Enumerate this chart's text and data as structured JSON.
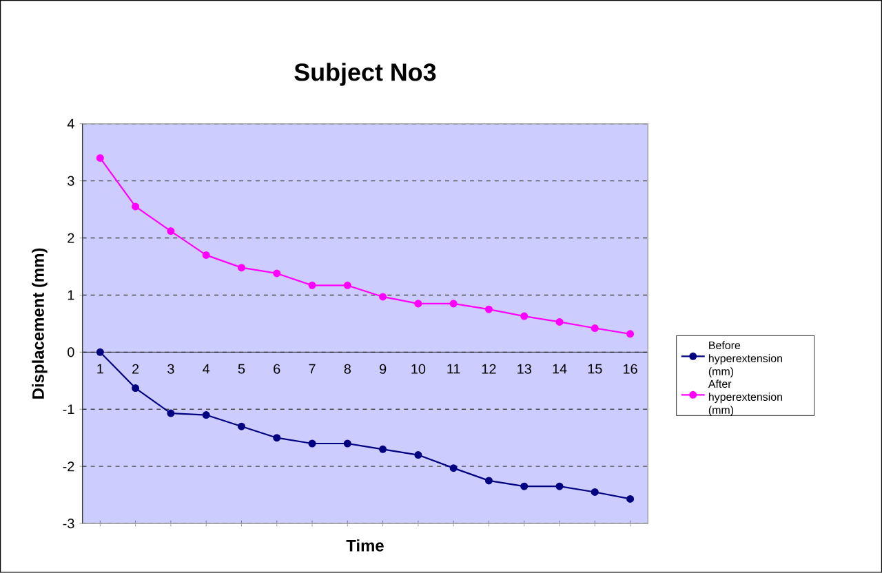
{
  "chart_data": {
    "type": "line",
    "title": "Subject No3",
    "xlabel": "Time",
    "ylabel": "Displacement (mm)",
    "categories": [
      "1",
      "2",
      "3",
      "4",
      "5",
      "6",
      "7",
      "8",
      "9",
      "10",
      "11",
      "12",
      "13",
      "14",
      "15",
      "16"
    ],
    "series": [
      {
        "name": "Before hyperextension (mm)",
        "color": "#000080",
        "values": [
          0,
          -0.63,
          -1.07,
          -1.1,
          -1.3,
          -1.5,
          -1.6,
          -1.6,
          -1.7,
          -1.8,
          -2.03,
          -2.25,
          -2.35,
          -2.35,
          -2.45,
          -2.57
        ]
      },
      {
        "name": "After hyperextension (mm)",
        "color": "#ff00ff",
        "values": [
          3.4,
          2.55,
          2.12,
          1.7,
          1.48,
          1.38,
          1.17,
          1.17,
          0.97,
          0.85,
          0.85,
          0.75,
          0.63,
          0.53,
          0.42,
          0.32
        ]
      }
    ],
    "ylim": [
      -3,
      4
    ],
    "yticks": [
      -3,
      -2,
      -1,
      0,
      1,
      2,
      3,
      4
    ],
    "grid": "y",
    "legend": "right",
    "marker": "circle",
    "line_style": "solid"
  }
}
